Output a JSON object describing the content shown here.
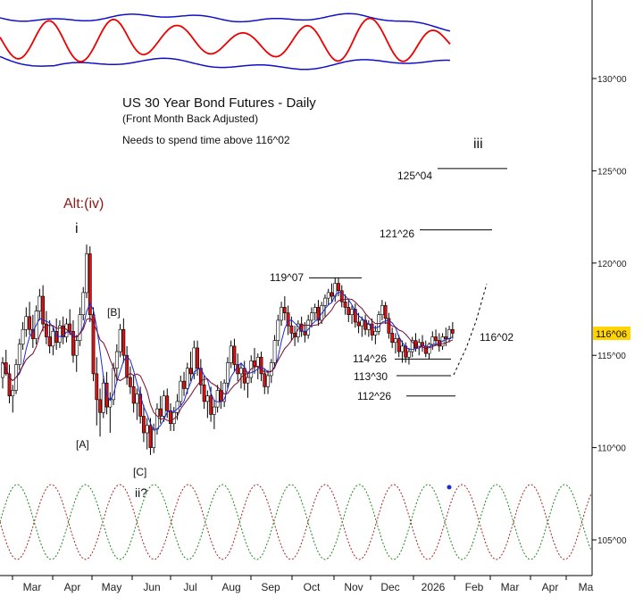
{
  "chart_data": {
    "type": "candlestick",
    "title": "US 30 Year Bond Futures - Daily",
    "subtitle": "(Front Month Back Adjusted)",
    "note": "Needs to spend time above 116^02",
    "price_ticks": [
      {
        "value": 105,
        "label": "105^00"
      },
      {
        "value": 110,
        "label": "110^00"
      },
      {
        "value": 115,
        "label": "115^00"
      },
      {
        "value": 120,
        "label": "120^00"
      },
      {
        "value": 125,
        "label": "125^00"
      },
      {
        "value": 130,
        "label": "130^00"
      }
    ],
    "ylim": [
      103.5,
      134.5
    ],
    "months": [
      "Mar",
      "Apr",
      "May",
      "Jun",
      "Jul",
      "Aug",
      "Sep",
      "Oct",
      "Nov",
      "Dec",
      "2026",
      "Feb",
      "Mar",
      "Apr",
      "Ma"
    ],
    "current_price": {
      "label": "116^06",
      "value": 116.19,
      "color": "#ffd400"
    },
    "colors": {
      "up": "#ffffff",
      "down": "#dd1111",
      "ma_fast": "#1a2bd6",
      "ma_slow": "#7a0a2a",
      "oscillator": "#ee0000",
      "bands": "#1010c8",
      "cycle_a": "#aa2222",
      "cycle_b": "#1a8a1a"
    },
    "wave_labels": [
      {
        "text": "Alt:(iv)",
        "color": "#8b1a1a"
      },
      {
        "text": "i"
      },
      {
        "text": "[B]"
      },
      {
        "text": "[A]"
      },
      {
        "text": "[C]"
      },
      {
        "text": "ii?"
      },
      {
        "text": "iii"
      }
    ],
    "levels": [
      {
        "label": "125^04",
        "value": 125.125
      },
      {
        "label": "121^26",
        "value": 121.8
      },
      {
        "label": "119^07",
        "value": 119.2
      },
      {
        "label": "114^26",
        "value": 114.8
      },
      {
        "label": "113^30",
        "value": 113.9
      },
      {
        "label": "112^26",
        "value": 112.8
      }
    ],
    "projection_label": "116^02",
    "candles": [
      [
        113.8,
        114.9,
        113.2,
        114.6
      ],
      [
        114.6,
        115.3,
        113.9,
        114.0
      ],
      [
        114.0,
        114.5,
        112.4,
        112.8
      ],
      [
        112.8,
        113.4,
        111.9,
        113.1
      ],
      [
        113.1,
        114.8,
        112.9,
        114.5
      ],
      [
        114.5,
        115.9,
        114.2,
        115.6
      ],
      [
        115.6,
        116.8,
        115.3,
        116.4
      ],
      [
        116.4,
        117.6,
        116.0,
        117.1
      ],
      [
        117.1,
        117.9,
        116.1,
        116.4
      ],
      [
        116.4,
        117.2,
        115.4,
        115.9
      ],
      [
        115.9,
        117.7,
        115.6,
        117.4
      ],
      [
        117.4,
        118.6,
        116.9,
        118.2
      ],
      [
        118.2,
        118.8,
        116.3,
        116.7
      ],
      [
        116.7,
        117.4,
        115.6,
        116.0
      ],
      [
        116.0,
        116.9,
        115.1,
        115.5
      ],
      [
        115.5,
        116.6,
        115.0,
        116.3
      ],
      [
        116.3,
        117.0,
        115.3,
        115.7
      ],
      [
        115.7,
        116.9,
        115.4,
        116.6
      ],
      [
        116.6,
        117.1,
        115.6,
        116.0
      ],
      [
        116.0,
        117.0,
        115.7,
        116.7
      ],
      [
        116.7,
        117.5,
        116.1,
        116.3
      ],
      [
        116.3,
        116.9,
        114.6,
        115.0
      ],
      [
        115.0,
        116.1,
        114.1,
        115.8
      ],
      [
        115.8,
        117.6,
        115.5,
        117.2
      ],
      [
        117.2,
        118.7,
        116.9,
        118.4
      ],
      [
        118.4,
        121.0,
        118.1,
        120.5
      ],
      [
        120.5,
        120.9,
        116.8,
        117.2
      ],
      [
        117.2,
        117.6,
        113.6,
        114.0
      ],
      [
        114.0,
        114.9,
        111.2,
        112.6
      ],
      [
        112.6,
        113.2,
        110.6,
        111.9
      ],
      [
        111.9,
        113.9,
        111.6,
        113.5
      ],
      [
        113.5,
        114.1,
        111.8,
        112.2
      ],
      [
        112.2,
        113.0,
        110.8,
        112.6
      ],
      [
        112.6,
        114.6,
        112.3,
        114.3
      ],
      [
        114.3,
        115.6,
        113.6,
        115.2
      ],
      [
        115.2,
        116.7,
        114.9,
        116.4
      ],
      [
        116.4,
        117.0,
        114.6,
        115.0
      ],
      [
        115.0,
        115.5,
        113.4,
        113.8
      ],
      [
        113.8,
        114.4,
        112.9,
        113.3
      ],
      [
        113.3,
        113.9,
        111.9,
        112.4
      ],
      [
        112.4,
        113.2,
        111.5,
        112.9
      ],
      [
        112.9,
        113.3,
        111.3,
        111.7
      ],
      [
        111.7,
        112.3,
        110.3,
        110.8
      ],
      [
        110.8,
        111.6,
        109.9,
        111.2
      ],
      [
        111.2,
        111.6,
        109.6,
        110.0
      ],
      [
        110.0,
        111.3,
        109.7,
        111.0
      ],
      [
        111.0,
        112.4,
        110.7,
        112.1
      ],
      [
        112.1,
        112.8,
        111.3,
        111.7
      ],
      [
        111.7,
        113.1,
        111.4,
        112.8
      ],
      [
        112.8,
        113.2,
        111.6,
        112.0
      ],
      [
        112.0,
        112.4,
        110.9,
        111.3
      ],
      [
        111.3,
        112.2,
        110.9,
        111.9
      ],
      [
        111.9,
        112.9,
        111.5,
        112.5
      ],
      [
        112.5,
        113.9,
        112.2,
        113.6
      ],
      [
        113.6,
        114.1,
        112.8,
        113.2
      ],
      [
        113.2,
        114.6,
        112.9,
        114.3
      ],
      [
        114.3,
        115.2,
        113.6,
        114.0
      ],
      [
        114.0,
        115.8,
        113.7,
        115.4
      ],
      [
        115.4,
        115.8,
        113.9,
        114.3
      ],
      [
        114.3,
        114.8,
        112.9,
        113.4
      ],
      [
        113.4,
        113.9,
        112.1,
        112.5
      ],
      [
        112.5,
        113.1,
        111.6,
        112.8
      ],
      [
        112.8,
        113.3,
        111.4,
        111.8
      ],
      [
        111.8,
        112.6,
        111.0,
        112.2
      ],
      [
        112.2,
        113.4,
        111.9,
        113.1
      ],
      [
        113.1,
        113.6,
        112.1,
        112.5
      ],
      [
        112.5,
        113.7,
        112.2,
        113.5
      ],
      [
        113.5,
        114.9,
        113.2,
        114.6
      ],
      [
        114.6,
        115.8,
        114.3,
        115.5
      ],
      [
        115.5,
        115.9,
        114.1,
        114.5
      ],
      [
        114.5,
        115.1,
        113.6,
        114.0
      ],
      [
        114.0,
        114.6,
        113.2,
        114.3
      ],
      [
        114.3,
        114.7,
        113.1,
        113.5
      ],
      [
        113.5,
        114.1,
        112.7,
        113.8
      ],
      [
        113.8,
        115.0,
        113.5,
        114.7
      ],
      [
        114.7,
        115.4,
        114.0,
        114.4
      ],
      [
        114.4,
        115.1,
        113.7,
        114.9
      ],
      [
        114.9,
        115.2,
        113.6,
        114.0
      ],
      [
        114.0,
        114.3,
        112.9,
        113.3
      ],
      [
        113.3,
        114.2,
        112.9,
        113.9
      ],
      [
        113.9,
        114.8,
        113.5,
        114.6
      ],
      [
        114.6,
        116.1,
        114.3,
        115.8
      ],
      [
        115.8,
        117.2,
        115.5,
        116.9
      ],
      [
        116.9,
        117.9,
        116.6,
        117.6
      ],
      [
        117.6,
        118.2,
        116.9,
        117.3
      ],
      [
        117.3,
        117.7,
        116.1,
        116.6
      ],
      [
        116.6,
        117.1,
        115.8,
        116.2
      ],
      [
        116.2,
        116.6,
        115.5,
        116.0
      ],
      [
        116.0,
        116.9,
        115.7,
        116.7
      ],
      [
        116.7,
        117.1,
        116.0,
        116.3
      ],
      [
        116.3,
        116.8,
        115.7,
        116.1
      ],
      [
        116.1,
        117.2,
        115.9,
        116.9
      ],
      [
        116.9,
        117.6,
        116.5,
        117.3
      ],
      [
        117.3,
        117.8,
        116.9,
        117.6
      ],
      [
        117.6,
        118.0,
        116.6,
        116.9
      ],
      [
        116.9,
        117.9,
        116.7,
        117.7
      ],
      [
        117.7,
        118.3,
        117.1,
        118.1
      ],
      [
        118.1,
        118.6,
        117.7,
        118.4
      ],
      [
        118.4,
        118.9,
        117.9,
        118.2
      ],
      [
        118.2,
        119.2,
        117.9,
        118.9
      ],
      [
        118.9,
        119.2,
        118.2,
        118.5
      ],
      [
        118.5,
        118.8,
        117.6,
        117.9
      ],
      [
        117.9,
        118.3,
        117.2,
        117.6
      ],
      [
        117.6,
        118.0,
        116.8,
        117.2
      ],
      [
        117.2,
        117.7,
        116.7,
        117.5
      ],
      [
        117.5,
        117.8,
        116.5,
        116.8
      ],
      [
        116.8,
        117.3,
        116.2,
        116.6
      ],
      [
        116.6,
        117.1,
        116.0,
        116.9
      ],
      [
        116.9,
        117.2,
        116.1,
        116.4
      ],
      [
        116.4,
        116.9,
        116.0,
        116.7
      ],
      [
        116.7,
        117.0,
        115.8,
        116.1
      ],
      [
        116.1,
        116.6,
        115.6,
        116.3
      ],
      [
        116.3,
        117.4,
        116.1,
        117.2
      ],
      [
        117.2,
        118.0,
        116.9,
        117.7
      ],
      [
        117.7,
        117.9,
        116.7,
        117.0
      ],
      [
        117.0,
        117.3,
        115.9,
        116.2
      ],
      [
        116.2,
        116.5,
        115.4,
        115.7
      ],
      [
        115.7,
        116.2,
        115.1,
        115.9
      ],
      [
        115.9,
        116.1,
        114.9,
        115.2
      ],
      [
        115.2,
        115.8,
        114.6,
        115.5
      ],
      [
        115.5,
        115.7,
        114.6,
        114.9
      ],
      [
        114.9,
        115.4,
        114.5,
        115.2
      ],
      [
        115.2,
        116.0,
        114.9,
        115.8
      ],
      [
        115.8,
        116.2,
        115.2,
        115.4
      ],
      [
        115.4,
        115.9,
        115.0,
        115.7
      ],
      [
        115.7,
        116.1,
        115.2,
        115.5
      ],
      [
        115.5,
        115.8,
        114.9,
        115.1
      ],
      [
        115.1,
        115.7,
        114.8,
        115.6
      ],
      [
        115.6,
        116.3,
        115.3,
        116.0
      ],
      [
        116.0,
        116.4,
        115.5,
        115.8
      ],
      [
        115.8,
        116.2,
        115.2,
        115.5
      ],
      [
        115.5,
        116.2,
        115.3,
        116.0
      ],
      [
        116.0,
        116.5,
        115.5,
        115.9
      ],
      [
        115.9,
        116.6,
        115.7,
        116.4
      ],
      [
        116.4,
        116.8,
        115.9,
        116.2
      ]
    ]
  }
}
